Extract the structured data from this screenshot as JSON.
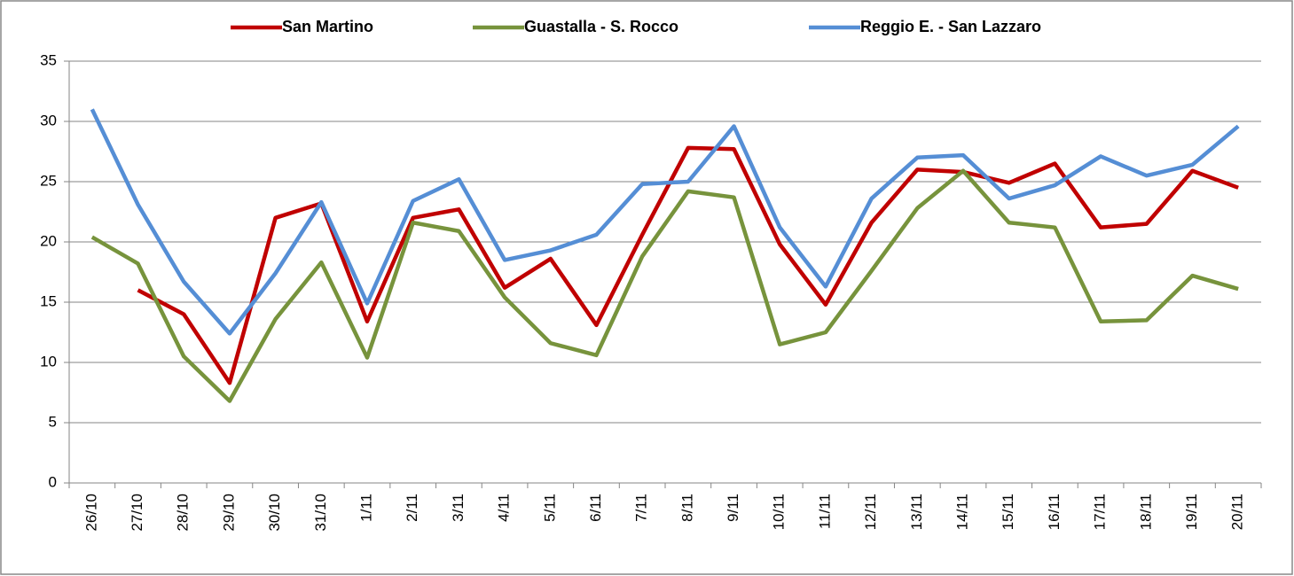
{
  "chart_data": {
    "type": "line",
    "categories": [
      "26/10",
      "27/10",
      "28/10",
      "29/10",
      "30/10",
      "31/10",
      "1/11",
      "2/11",
      "3/11",
      "4/11",
      "5/11",
      "6/11",
      "7/11",
      "8/11",
      "9/11",
      "10/11",
      "11/11",
      "12/11",
      "13/11",
      "14/11",
      "15/11",
      "16/11",
      "17/11",
      "18/11",
      "19/11",
      "20/11"
    ],
    "series": [
      {
        "name": "San Martino",
        "color": "#c00000",
        "values": [
          null,
          16,
          14,
          8.3,
          22,
          23.2,
          13.4,
          22,
          22.7,
          16.2,
          18.6,
          13.1,
          20.6,
          27.8,
          27.7,
          19.8,
          14.8,
          21.6,
          26,
          25.8,
          24.9,
          26.5,
          21.2,
          21.5,
          25.9,
          24.5
        ]
      },
      {
        "name": "Guastalla - S. Rocco",
        "color": "#77933c",
        "values": [
          20.4,
          18.2,
          10.5,
          6.8,
          13.6,
          18.3,
          10.4,
          21.6,
          20.9,
          15.4,
          11.6,
          10.6,
          18.8,
          24.2,
          23.7,
          11.5,
          12.5,
          17.6,
          22.8,
          25.9,
          21.6,
          21.2,
          13.4,
          13.5,
          17.2,
          16.1
        ]
      },
      {
        "name": "Reggio E. - San Lazzaro",
        "color": "#558ed5",
        "values": [
          31,
          23.1,
          16.7,
          12.4,
          17.4,
          23.3,
          14.9,
          23.4,
          25.2,
          18.5,
          19.3,
          20.6,
          24.8,
          25,
          29.6,
          21.2,
          16.3,
          23.6,
          27,
          27.2,
          23.6,
          24.7,
          27.1,
          25.5,
          26.4,
          29.6
        ]
      }
    ],
    "ylim": [
      0,
      35
    ],
    "yticks": [
      0,
      5,
      10,
      15,
      20,
      25,
      30,
      35
    ],
    "grid": true,
    "legend": "top"
  }
}
